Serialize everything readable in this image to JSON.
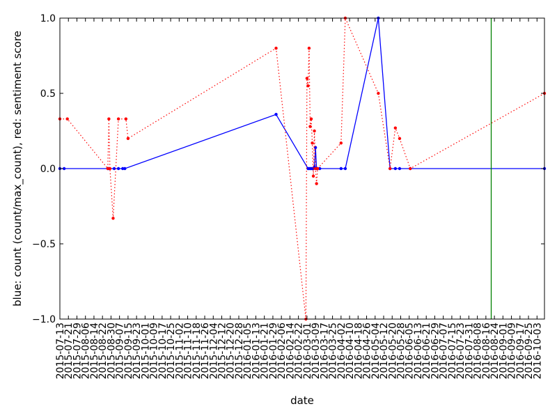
{
  "chart_data": {
    "type": "line",
    "title": "",
    "xlabel": "date",
    "ylabel": "blue: count (count/max_count), red: sentiment score",
    "ylim": [
      -1.0,
      1.0
    ],
    "xlim": [
      "2015-07-13",
      "2016-10-10"
    ],
    "grid": false,
    "legend": "none",
    "y_ticks": [
      {
        "value": -1.0,
        "label": "−1.0"
      },
      {
        "value": -0.5,
        "label": "−0.5"
      },
      {
        "value": 0.0,
        "label": "0.0"
      },
      {
        "value": 0.5,
        "label": "0.5"
      },
      {
        "value": 1.0,
        "label": "1.0"
      }
    ],
    "x_ticks": [
      "2015-07-13",
      "2015-07-21",
      "2015-07-29",
      "2015-08-06",
      "2015-08-14",
      "2015-08-22",
      "2015-08-30",
      "2015-09-07",
      "2015-09-15",
      "2015-09-23",
      "2015-10-01",
      "2015-10-09",
      "2015-10-17",
      "2015-10-25",
      "2015-11-02",
      "2015-11-10",
      "2015-11-18",
      "2015-11-26",
      "2015-12-04",
      "2015-12-12",
      "2015-12-20",
      "2015-12-28",
      "2016-01-05",
      "2016-01-13",
      "2016-01-21",
      "2016-01-29",
      "2016-02-06",
      "2016-02-14",
      "2016-02-22",
      "2016-03-01",
      "2016-03-09",
      "2016-03-17",
      "2016-03-25",
      "2016-04-02",
      "2016-04-10",
      "2016-04-18",
      "2016-04-26",
      "2016-05-04",
      "2016-05-12",
      "2016-05-20",
      "2016-05-28",
      "2016-06-05",
      "2016-06-13",
      "2016-06-21",
      "2016-06-29",
      "2016-07-07",
      "2016-07-15",
      "2016-07-23",
      "2016-07-31",
      "2016-08-08",
      "2016-08-16",
      "2016-08-24",
      "2016-09-01",
      "2016-09-09",
      "2016-09-17",
      "2016-09-25",
      "2016-10-03"
    ],
    "series": [
      {
        "color": "#0000ff",
        "style": "solid",
        "points": [
          {
            "x": "2015-07-13",
            "y": 0.0
          },
          {
            "x": "2015-07-17",
            "y": 0.0
          },
          {
            "x": "2015-08-27",
            "y": 0.0
          },
          {
            "x": "2015-08-28",
            "y": 0.0
          },
          {
            "x": "2015-09-02",
            "y": 0.0
          },
          {
            "x": "2015-09-06",
            "y": 0.0
          },
          {
            "x": "2015-09-10",
            "y": 0.0
          },
          {
            "x": "2015-09-12",
            "y": 0.0
          },
          {
            "x": "2016-02-01",
            "y": 0.36
          },
          {
            "x": "2016-03-02",
            "y": 0.0
          },
          {
            "x": "2016-03-03",
            "y": 0.0
          },
          {
            "x": "2016-03-04",
            "y": 0.0
          },
          {
            "x": "2016-03-05",
            "y": 0.0
          },
          {
            "x": "2016-03-06",
            "y": 0.0
          },
          {
            "x": "2016-03-07",
            "y": 0.0
          },
          {
            "x": "2016-03-08",
            "y": 0.01
          },
          {
            "x": "2016-03-09",
            "y": 0.14
          },
          {
            "x": "2016-03-10",
            "y": 0.0
          },
          {
            "x": "2016-03-11",
            "y": 0.0
          },
          {
            "x": "2016-03-13",
            "y": 0.0
          },
          {
            "x": "2016-04-02",
            "y": 0.0
          },
          {
            "x": "2016-04-06",
            "y": 0.0
          },
          {
            "x": "2016-05-07",
            "y": 1.0
          },
          {
            "x": "2016-05-18",
            "y": 0.0
          },
          {
            "x": "2016-05-23",
            "y": 0.0
          },
          {
            "x": "2016-05-27",
            "y": 0.0
          },
          {
            "x": "2016-06-06",
            "y": 0.0
          },
          {
            "x": "2016-10-10",
            "y": 0.0
          }
        ]
      },
      {
        "color": "#ff0000",
        "style": "dotted",
        "points": [
          {
            "x": "2015-07-13",
            "y": 0.33
          },
          {
            "x": "2015-07-20",
            "y": 0.33
          },
          {
            "x": "2015-08-27",
            "y": 0.0
          },
          {
            "x": "2015-08-28",
            "y": 0.33
          },
          {
            "x": "2015-08-29",
            "y": 0.0
          },
          {
            "x": "2015-09-01",
            "y": -0.33
          },
          {
            "x": "2015-09-06",
            "y": 0.33
          },
          {
            "x": "2015-09-13",
            "y": 0.33
          },
          {
            "x": "2015-09-15",
            "y": 0.2
          },
          {
            "x": "2016-02-01",
            "y": 0.8
          },
          {
            "x": "2016-02-29",
            "y": -1.0
          },
          {
            "x": "2016-03-01",
            "y": 0.6
          },
          {
            "x": "2016-03-02",
            "y": 0.55
          },
          {
            "x": "2016-03-03",
            "y": 0.8
          },
          {
            "x": "2016-03-04",
            "y": 0.28
          },
          {
            "x": "2016-03-05",
            "y": 0.33
          },
          {
            "x": "2016-03-06",
            "y": 0.17
          },
          {
            "x": "2016-03-07",
            "y": -0.05
          },
          {
            "x": "2016-03-08",
            "y": 0.25
          },
          {
            "x": "2016-03-09",
            "y": 0.0
          },
          {
            "x": "2016-03-10",
            "y": -0.1
          },
          {
            "x": "2016-03-11",
            "y": 0.0
          },
          {
            "x": "2016-04-02",
            "y": 0.17
          },
          {
            "x": "2016-04-06",
            "y": 1.0
          },
          {
            "x": "2016-05-07",
            "y": 0.5
          },
          {
            "x": "2016-05-18",
            "y": 0.0
          },
          {
            "x": "2016-05-23",
            "y": 0.27
          },
          {
            "x": "2016-05-27",
            "y": 0.2
          },
          {
            "x": "2016-06-06",
            "y": 0.0
          },
          {
            "x": "2016-10-10",
            "y": 0.5
          }
        ]
      }
    ],
    "vertical_line": {
      "x": "2016-08-21",
      "color": "#008000"
    }
  }
}
